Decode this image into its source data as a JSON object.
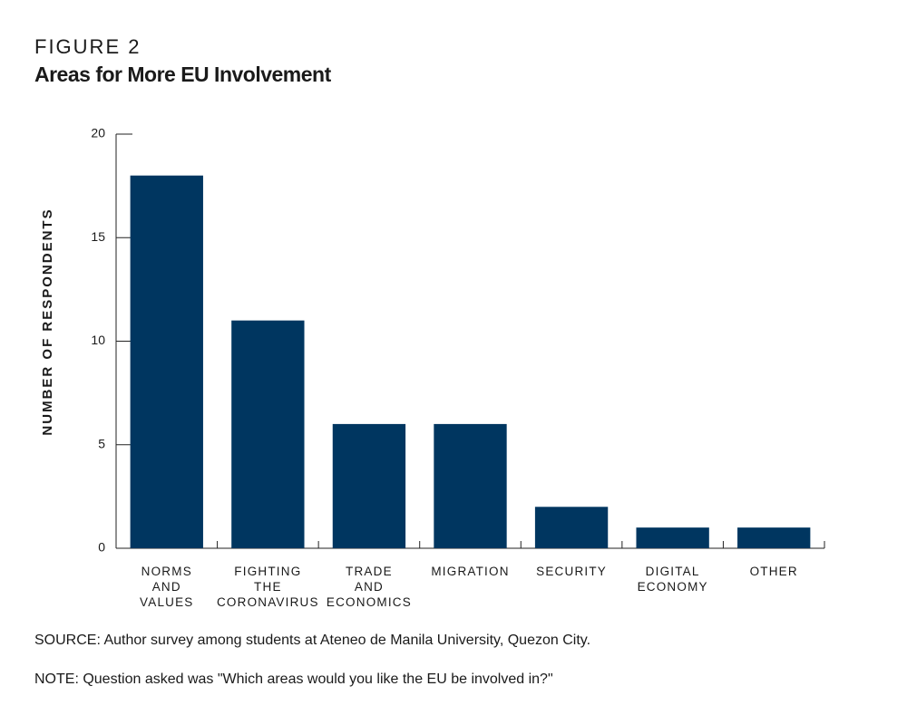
{
  "chart_data": {
    "type": "bar",
    "figure_label": "FIGURE 2",
    "title": "Areas for More EU Involvement",
    "y_label": "NUMBER OF RESPONDENTS",
    "categories": [
      [
        "NORMS",
        "AND",
        "VALUES"
      ],
      [
        "FIGHTING",
        "THE",
        "CORONAVIRUS"
      ],
      [
        "TRADE",
        "AND",
        "ECONOMICS"
      ],
      [
        "MIGRATION"
      ],
      [
        "SECURITY"
      ],
      [
        "DIGITAL",
        "ECONOMY"
      ],
      [
        "OTHER"
      ]
    ],
    "values": [
      18,
      11,
      6,
      6,
      2,
      1,
      1
    ],
    "color": "#003660",
    "ylim": [
      0,
      20
    ],
    "yticks": [
      0,
      5,
      10,
      15,
      20
    ],
    "grid": false,
    "source": "SOURCE: Author survey among students at Ateneo de Manila University, Quezon City.",
    "note": "NOTE: Question asked was \"Which areas would you like the EU be involved in?\""
  }
}
